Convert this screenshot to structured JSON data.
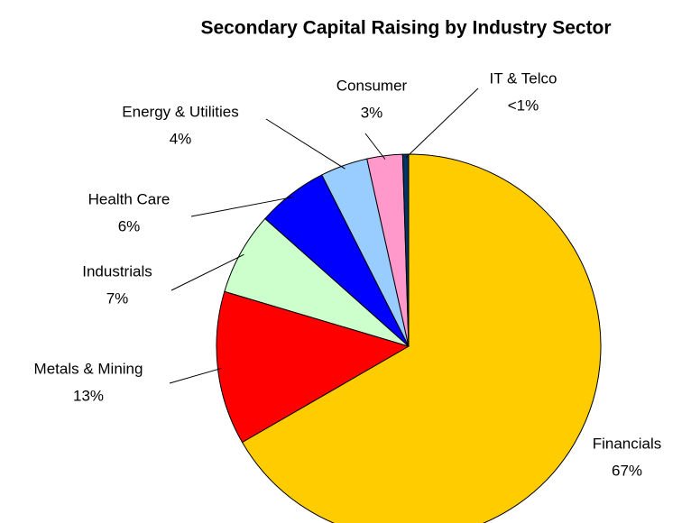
{
  "chart_data": {
    "type": "pie",
    "title": "Secondary Capital Raising by Industry Sector",
    "categories": [
      "Financials",
      "Metals & Mining",
      "Industrials",
      "Health Care",
      "Energy & Utilities",
      "Consumer",
      "IT & Telco"
    ],
    "values": [
      67,
      13,
      7,
      6,
      4,
      3,
      0.5
    ],
    "value_labels": [
      "67%",
      "13%",
      "7%",
      "6%",
      "4%",
      "3%",
      "<1%"
    ],
    "colors": [
      "#ffcc00",
      "#ff0000",
      "#ccffcc",
      "#0000ff",
      "#99ccff",
      "#ff99cc",
      "#003366"
    ]
  }
}
